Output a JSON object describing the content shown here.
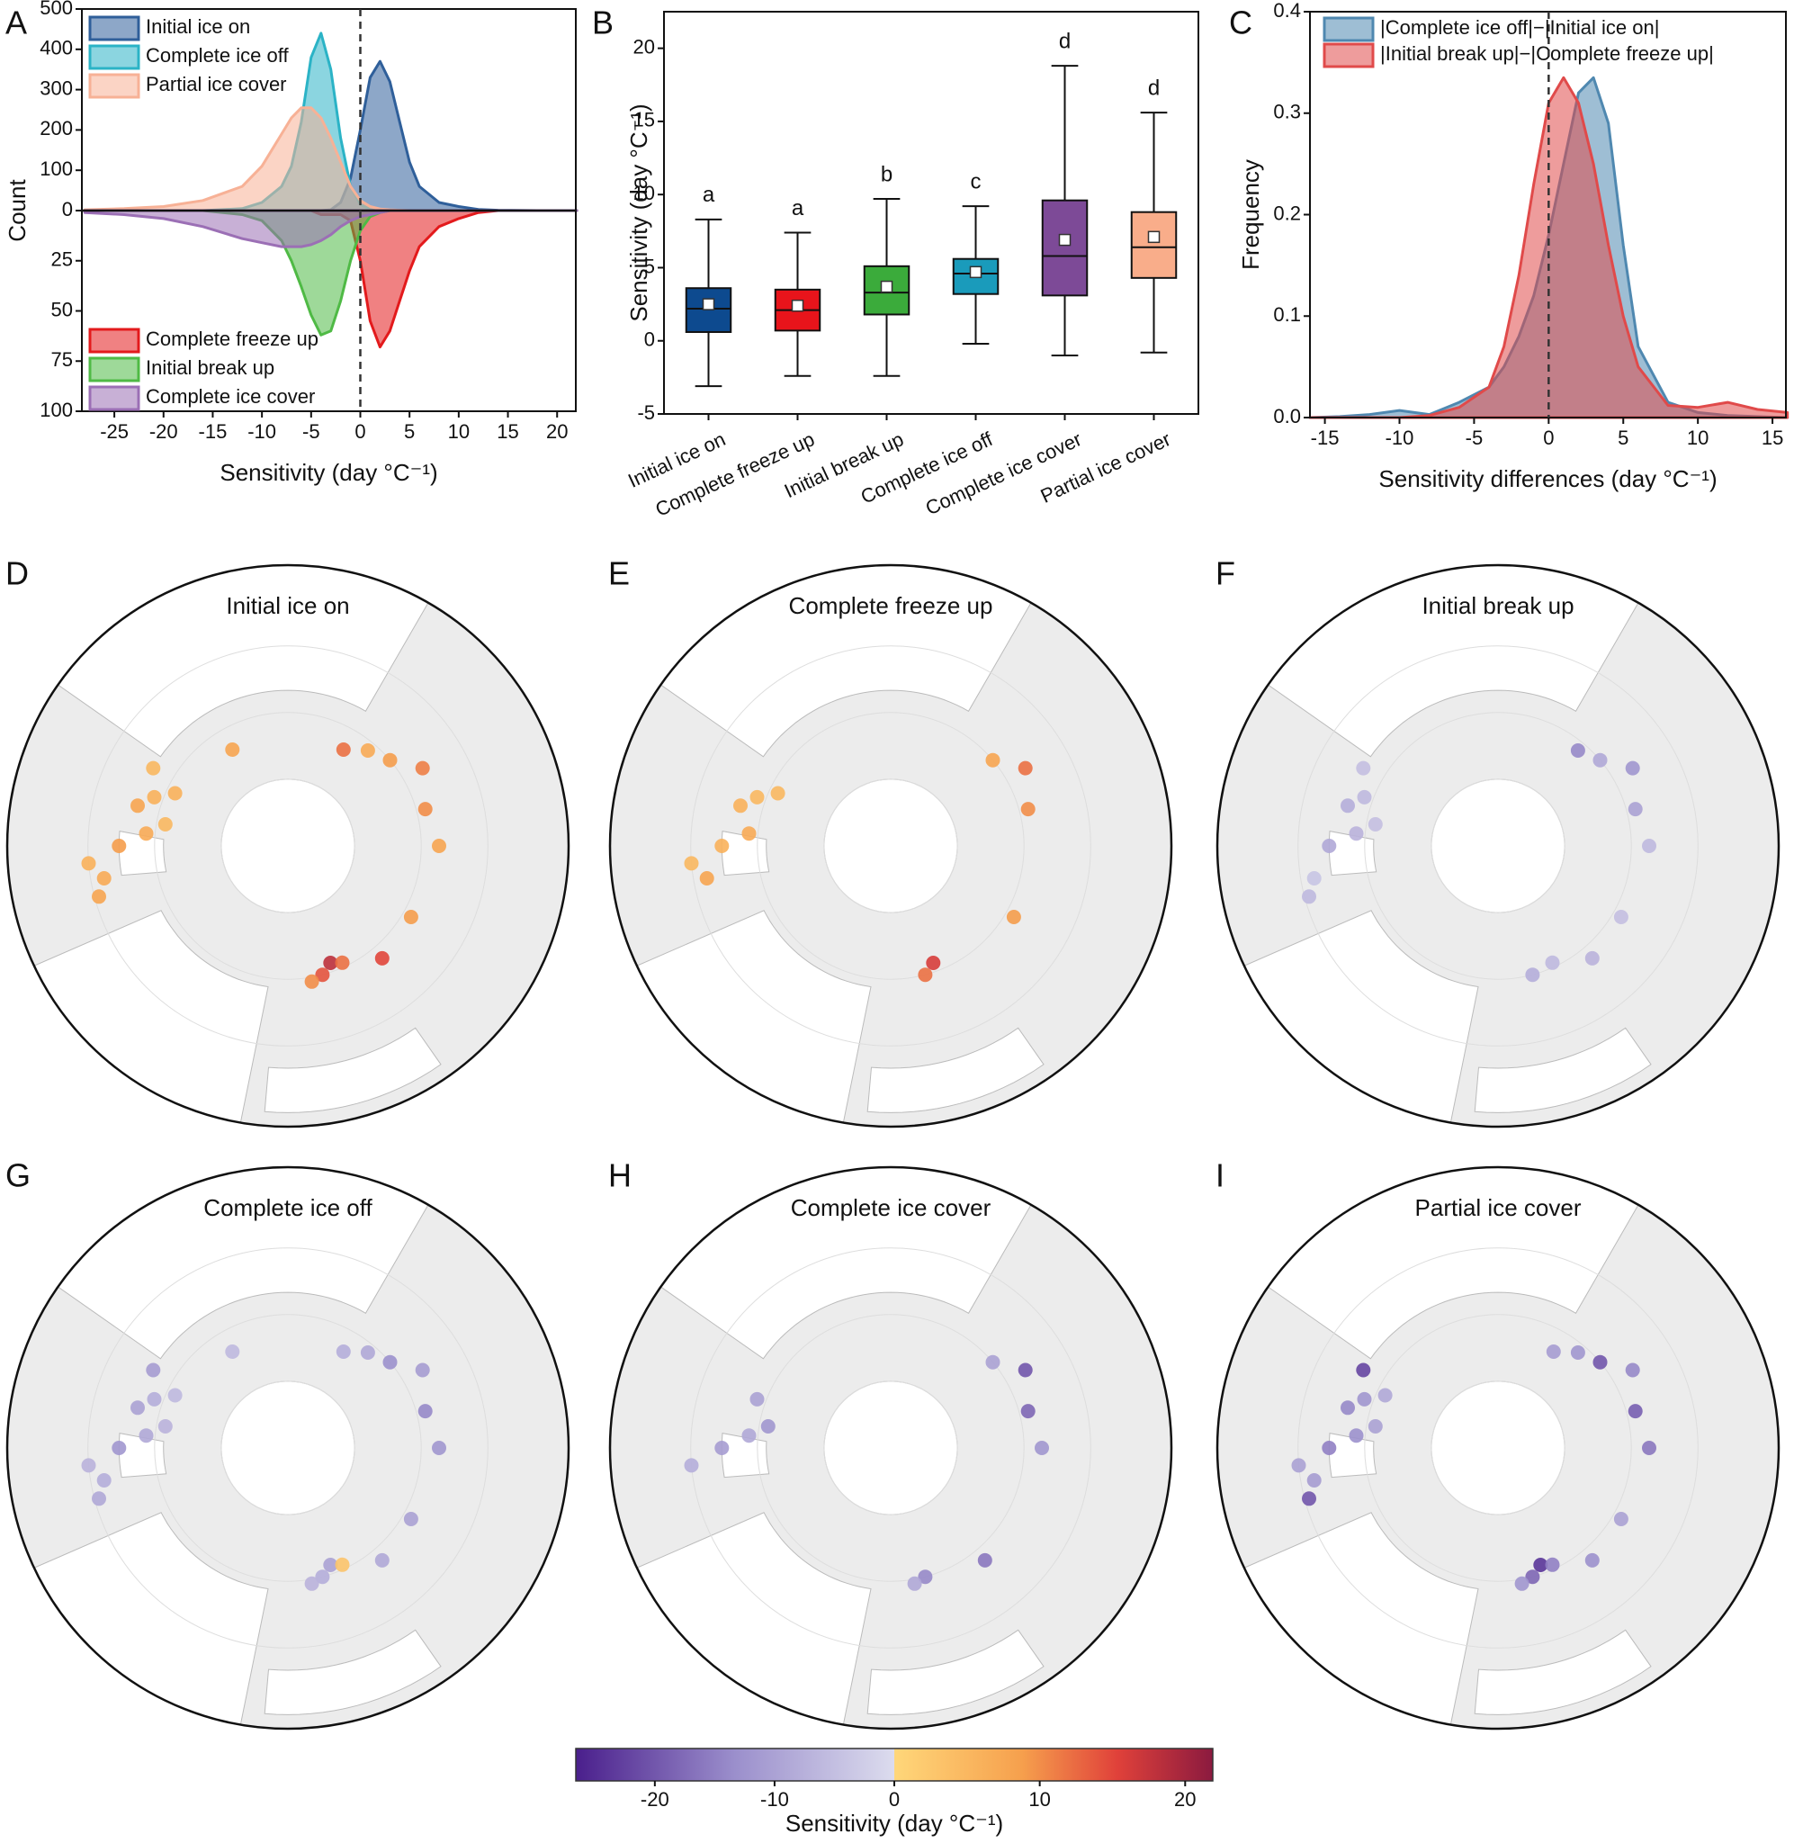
{
  "chart_data": [
    {
      "type": "area",
      "letter": "A",
      "xlabel": "Sensitivity (day °C⁻¹)",
      "ylabel": "Count",
      "x": [
        -28,
        -24,
        -20,
        -16,
        -12,
        -10,
        -8,
        -7,
        -6,
        -5,
        -4,
        -3,
        -2,
        -1,
        0,
        1,
        2,
        3,
        4,
        5,
        6,
        8,
        10,
        12,
        14,
        18,
        22
      ],
      "xlim": [
        -28.3,
        21.9
      ],
      "xticks": [
        -25,
        -20,
        -15,
        -10,
        -5,
        0,
        5,
        10,
        15,
        20
      ],
      "ylim": [
        0,
        500
      ],
      "yticks": [
        0,
        100,
        200,
        300,
        400,
        500
      ],
      "y2lim": [
        0,
        100
      ],
      "y2ticks": [
        25,
        50,
        75,
        100
      ],
      "vline": 0,
      "series": [
        {
          "name": "Initial ice on",
          "color": "#2f5f9a",
          "values": [
            0,
            0,
            0,
            0,
            0,
            0,
            0,
            0,
            0,
            0,
            0,
            2,
            20,
            80,
            200,
            330,
            370,
            320,
            220,
            120,
            60,
            20,
            10,
            3,
            1,
            0,
            0
          ]
        },
        {
          "name": "Complete ice off",
          "color": "#2bb3c6",
          "values": [
            0,
            0,
            0,
            0,
            5,
            20,
            60,
            110,
            220,
            380,
            440,
            350,
            180,
            60,
            15,
            3,
            0,
            0,
            0,
            0,
            0,
            0,
            0,
            0,
            0,
            0,
            0
          ]
        },
        {
          "name": "Partial ice cover",
          "color": "#f7b196",
          "values": [
            2,
            5,
            10,
            25,
            60,
            110,
            190,
            230,
            255,
            255,
            230,
            180,
            120,
            60,
            25,
            10,
            4,
            2,
            1,
            0,
            0,
            0,
            0,
            0,
            0,
            0,
            0
          ]
        },
        {
          "name": "Complete freeze up",
          "color": "#e31a1c",
          "axis": "y2",
          "values": [
            0,
            0,
            0,
            0,
            0,
            0,
            0,
            0,
            0,
            0,
            2,
            2,
            2,
            5,
            25,
            55,
            68,
            60,
            45,
            30,
            18,
            8,
            4,
            1,
            0,
            0,
            0
          ]
        },
        {
          "name": "Initial break up",
          "color": "#4fba45",
          "axis": "y2",
          "values": [
            0,
            0,
            0,
            0,
            2,
            5,
            15,
            25,
            38,
            52,
            62,
            60,
            45,
            25,
            10,
            3,
            1,
            0,
            0,
            0,
            0,
            0,
            0,
            0,
            0,
            0,
            0
          ]
        },
        {
          "name": "Complete ice cover",
          "color": "#9b6fb5",
          "axis": "y2",
          "values": [
            1,
            2,
            4,
            8,
            14,
            16,
            18,
            18,
            18,
            17,
            15,
            12,
            8,
            5,
            3,
            2,
            1,
            0,
            0,
            0,
            0,
            0,
            0,
            0,
            0,
            0,
            0
          ]
        }
      ]
    },
    {
      "type": "box",
      "letter": "B",
      "ylabel": "Sensitivity (day °C⁻¹)",
      "categories": [
        "Initial ice on",
        "Complete freeze up",
        "Initial break up",
        "Complete ice off",
        "Complete ice cover",
        "Partial ice cover"
      ],
      "colors": [
        "#0d4a8f",
        "#e8141b",
        "#3bab3b",
        "#1a9bbb",
        "#7d4a97",
        "#f9ad8a"
      ],
      "whislo": [
        -3.1,
        -2.4,
        -2.4,
        -0.2,
        -1.0,
        -0.8
      ],
      "q1": [
        0.6,
        0.7,
        1.8,
        3.2,
        3.1,
        4.3
      ],
      "med": [
        2.2,
        2.1,
        3.3,
        4.6,
        5.8,
        6.4
      ],
      "q3": [
        3.6,
        3.5,
        5.1,
        5.6,
        9.6,
        8.8
      ],
      "whishi": [
        8.3,
        7.4,
        9.7,
        9.2,
        18.8,
        15.6
      ],
      "mean": [
        2.5,
        2.4,
        3.7,
        4.7,
        6.9,
        7.1
      ],
      "letters": [
        "a",
        "a",
        "b",
        "c",
        "d",
        "d"
      ],
      "ylim": [
        -5,
        22.5
      ],
      "yticks": [
        -5,
        0,
        5,
        10,
        15,
        20
      ]
    },
    {
      "type": "area",
      "letter": "C",
      "xlabel": "Sensitivity differences  (day °C⁻¹)",
      "ylabel": "Frequency",
      "x": [
        -16,
        -14,
        -12,
        -10,
        -8,
        -6,
        -4,
        -3,
        -2,
        -1,
        0,
        1,
        2,
        3,
        4,
        5,
        6,
        8,
        10,
        12,
        14,
        16
      ],
      "xlim": [
        -16,
        15.9
      ],
      "xticks": [
        -15,
        -10,
        -5,
        0,
        5,
        10,
        15
      ],
      "ylim": [
        0,
        0.4
      ],
      "yticks": [
        {
          "value": 0,
          "label": "0.0"
        },
        0.1,
        0.2,
        0.3,
        0.4
      ],
      "vline": 0,
      "series": [
        {
          "name": "|Complete ice off|−|Initial ice on|",
          "color": "#4f88b0",
          "values": [
            0,
            0.001,
            0.003,
            0.007,
            0.003,
            0.015,
            0.03,
            0.05,
            0.08,
            0.12,
            0.18,
            0.25,
            0.32,
            0.335,
            0.29,
            0.17,
            0.07,
            0.015,
            0.005,
            0.002,
            0.001,
            0
          ]
        },
        {
          "name": "|Initial break up|−|Complete freeze up|",
          "color": "#e04a4a",
          "values": [
            0,
            0,
            0,
            0,
            0.002,
            0.01,
            0.03,
            0.07,
            0.14,
            0.23,
            0.31,
            0.335,
            0.31,
            0.25,
            0.17,
            0.1,
            0.05,
            0.012,
            0.01,
            0.015,
            0.008,
            0.005
          ]
        }
      ]
    },
    {
      "type": "map",
      "sites": {
        "lon": [
          -110,
          -105,
          -100,
          -95,
          -115,
          -90,
          -80,
          -75,
          -85,
          -120,
          -150,
          15,
          20,
          25,
          10,
          40,
          60,
          90,
          105,
          120,
          130,
          140,
          150
        ],
        "lat": [
          58,
          55,
          62,
          58,
          62,
          52,
          48,
          46,
          45,
          55,
          65,
          60,
          62,
          61,
          59,
          57,
          58,
          56,
          58,
          55,
          60,
          62,
          65
        ]
      },
      "panels": [
        {
          "letter": "D",
          "title": "Initial ice on",
          "values": [
            6,
            8,
            5,
            7,
            6,
            9,
            7,
            8,
            6,
            5,
            8,
            14,
            18,
            12,
            10,
            15,
            9,
            8,
            10,
            11,
            9,
            7,
            12
          ]
        },
        {
          "letter": "E",
          "title": "Complete freeze up",
          "values": [
            5,
            6,
            null,
            7,
            5,
            6,
            8,
            null,
            5,
            null,
            null,
            12,
            16,
            null,
            null,
            null,
            9,
            null,
            10,
            12,
            8,
            null,
            null
          ]
        },
        {
          "letter": "F",
          "title": "Initial break up",
          "values": [
            -6,
            -8,
            -5,
            -7,
            null,
            -9,
            -4,
            -6,
            null,
            -5,
            null,
            -8,
            null,
            -6,
            null,
            -7,
            -5,
            -6,
            -10,
            -12,
            -9,
            -14,
            null
          ]
        },
        {
          "letter": "G",
          "title": "Complete ice off",
          "values": [
            -8,
            -10,
            -7,
            -9,
            -6,
            -12,
            -8,
            -9,
            -7,
            -11,
            -6,
            -8,
            -10,
            3,
            -7,
            -9,
            -10,
            -12,
            -14,
            -11,
            -13,
            -9,
            -8
          ]
        },
        {
          "letter": "H",
          "title": "Complete ice cover",
          "values": [
            -10,
            null,
            -12,
            -9,
            null,
            -11,
            null,
            null,
            -8,
            null,
            null,
            -14,
            null,
            null,
            -9,
            -16,
            null,
            -12,
            -18,
            -20,
            -10,
            null,
            null
          ]
        },
        {
          "letter": "I",
          "title": "Partial ice cover",
          "values": [
            -12,
            -14,
            -10,
            -13,
            -9,
            -15,
            -11,
            -20,
            -10,
            -22,
            null,
            -18,
            -24,
            -15,
            -12,
            -13,
            -10,
            -16,
            -19,
            -14,
            -20,
            -12,
            -11
          ]
        }
      ],
      "clim": [
        -26.6,
        21.9
      ],
      "cticks": [
        -20,
        -10,
        0,
        10,
        20
      ],
      "clabel": "Sensitivity (day °C⁻¹)"
    }
  ]
}
